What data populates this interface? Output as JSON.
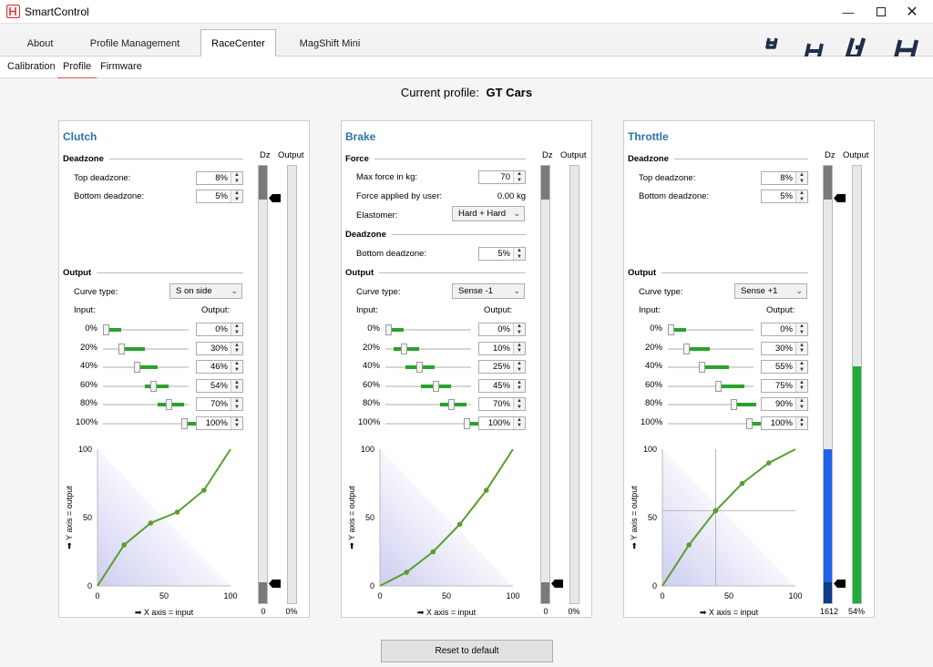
{
  "window": {
    "title": "SmartControl"
  },
  "tabs": [
    {
      "label": "About"
    },
    {
      "label": "Profile Management"
    },
    {
      "label": "RaceCenter"
    },
    {
      "label": "MagShift Mini"
    }
  ],
  "subtabs": [
    {
      "label": "Calibration"
    },
    {
      "label": "Profile"
    },
    {
      "label": "Firmware"
    }
  ],
  "profile": {
    "label": "Current profile:",
    "name": "GT Cars"
  },
  "columns": {
    "input": "Input:",
    "output": "Output:",
    "dz": "Dz",
    "output_bar": "Output"
  },
  "sections": {
    "deadzone": "Deadzone",
    "output": "Output",
    "force": "Force"
  },
  "labels": {
    "top_deadzone": "Top deadzone:",
    "bottom_deadzone": "Bottom deadzone:",
    "curve_type": "Curve type:",
    "max_force": "Max force in kg:",
    "force_applied": "Force applied by user:",
    "elastomer": "Elastomer:"
  },
  "axes": {
    "y_label": "➡ Y axis = output",
    "x_label": "➡ X axis = input",
    "ticks": [
      "0",
      "50",
      "100"
    ],
    "x_ticks": [
      "0",
      "50",
      "100"
    ]
  },
  "clutch": {
    "title": "Clutch",
    "top_deadzone": "8%",
    "bottom_deadzone": "5%",
    "curve_type": "S on side",
    "rows": [
      {
        "input": "0%",
        "output": "0%"
      },
      {
        "input": "20%",
        "output": "30%"
      },
      {
        "input": "40%",
        "output": "46%"
      },
      {
        "input": "60%",
        "output": "54%"
      },
      {
        "input": "80%",
        "output": "70%"
      },
      {
        "input": "100%",
        "output": "100%"
      }
    ],
    "curve": [
      0,
      30,
      46,
      54,
      70,
      100
    ],
    "dz_value": "0",
    "output_value": "0%",
    "output_level": 0
  },
  "brake": {
    "title": "Brake",
    "max_force": "70",
    "force_applied": "0.00 kg",
    "elastomer": "Hard + Hard",
    "bottom_deadzone": "5%",
    "curve_type": "Sense -1",
    "rows": [
      {
        "input": "0%",
        "output": "0%"
      },
      {
        "input": "20%",
        "output": "10%"
      },
      {
        "input": "40%",
        "output": "25%"
      },
      {
        "input": "60%",
        "output": "45%"
      },
      {
        "input": "80%",
        "output": "70%"
      },
      {
        "input": "100%",
        "output": "100%"
      }
    ],
    "curve": [
      0,
      10,
      25,
      45,
      70,
      100
    ],
    "dz_value": "0",
    "output_value": "0%",
    "output_level": 0
  },
  "throttle": {
    "title": "Throttle",
    "top_deadzone": "8%",
    "bottom_deadzone": "5%",
    "curve_type": "Sense +1",
    "rows": [
      {
        "input": "0%",
        "output": "0%"
      },
      {
        "input": "20%",
        "output": "30%"
      },
      {
        "input": "40%",
        "output": "55%"
      },
      {
        "input": "60%",
        "output": "75%"
      },
      {
        "input": "80%",
        "output": "90%"
      },
      {
        "input": "100%",
        "output": "100%"
      }
    ],
    "curve": [
      0,
      30,
      55,
      75,
      90,
      100
    ],
    "cursor": {
      "x": 40,
      "y": 55
    },
    "dz_value": "1612",
    "output_value": "54%",
    "output_level": 54,
    "raw_level": 0.35
  },
  "reset_button": "Reset to default",
  "colors": {
    "accent": "#2a74a8",
    "curve": "#5a9e2e",
    "green_fill": "#2aa12a",
    "raw_blue": "#1e64e6",
    "output_green": "#1eac3a"
  }
}
